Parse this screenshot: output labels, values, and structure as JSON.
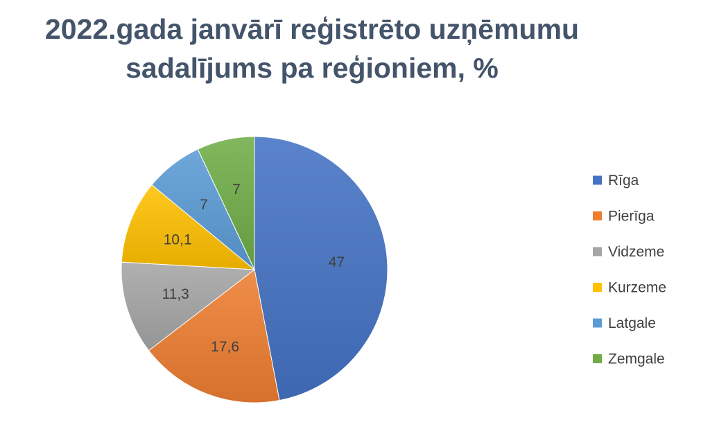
{
  "chart_data": {
    "type": "pie",
    "title_lines": [
      "2022.gada janvārī reģistrēto uzņēmumu",
      "sadalījums pa reģioniem, %"
    ],
    "categories": [
      "Rīga",
      "Pierīga",
      "Vidzeme",
      "Kurzeme",
      "Latgale",
      "Zemgale"
    ],
    "values": [
      47,
      17.6,
      11.3,
      10.1,
      7,
      7
    ],
    "value_labels": [
      "47",
      "17,6",
      "11,3",
      "10,1",
      "7",
      "7"
    ],
    "colors": [
      "#4472c4",
      "#ed7d31",
      "#a5a5a5",
      "#ffc000",
      "#5b9bd5",
      "#70ad47"
    ],
    "legend_position": "right",
    "start_angle": "12 o'clock",
    "direction": "clockwise"
  }
}
